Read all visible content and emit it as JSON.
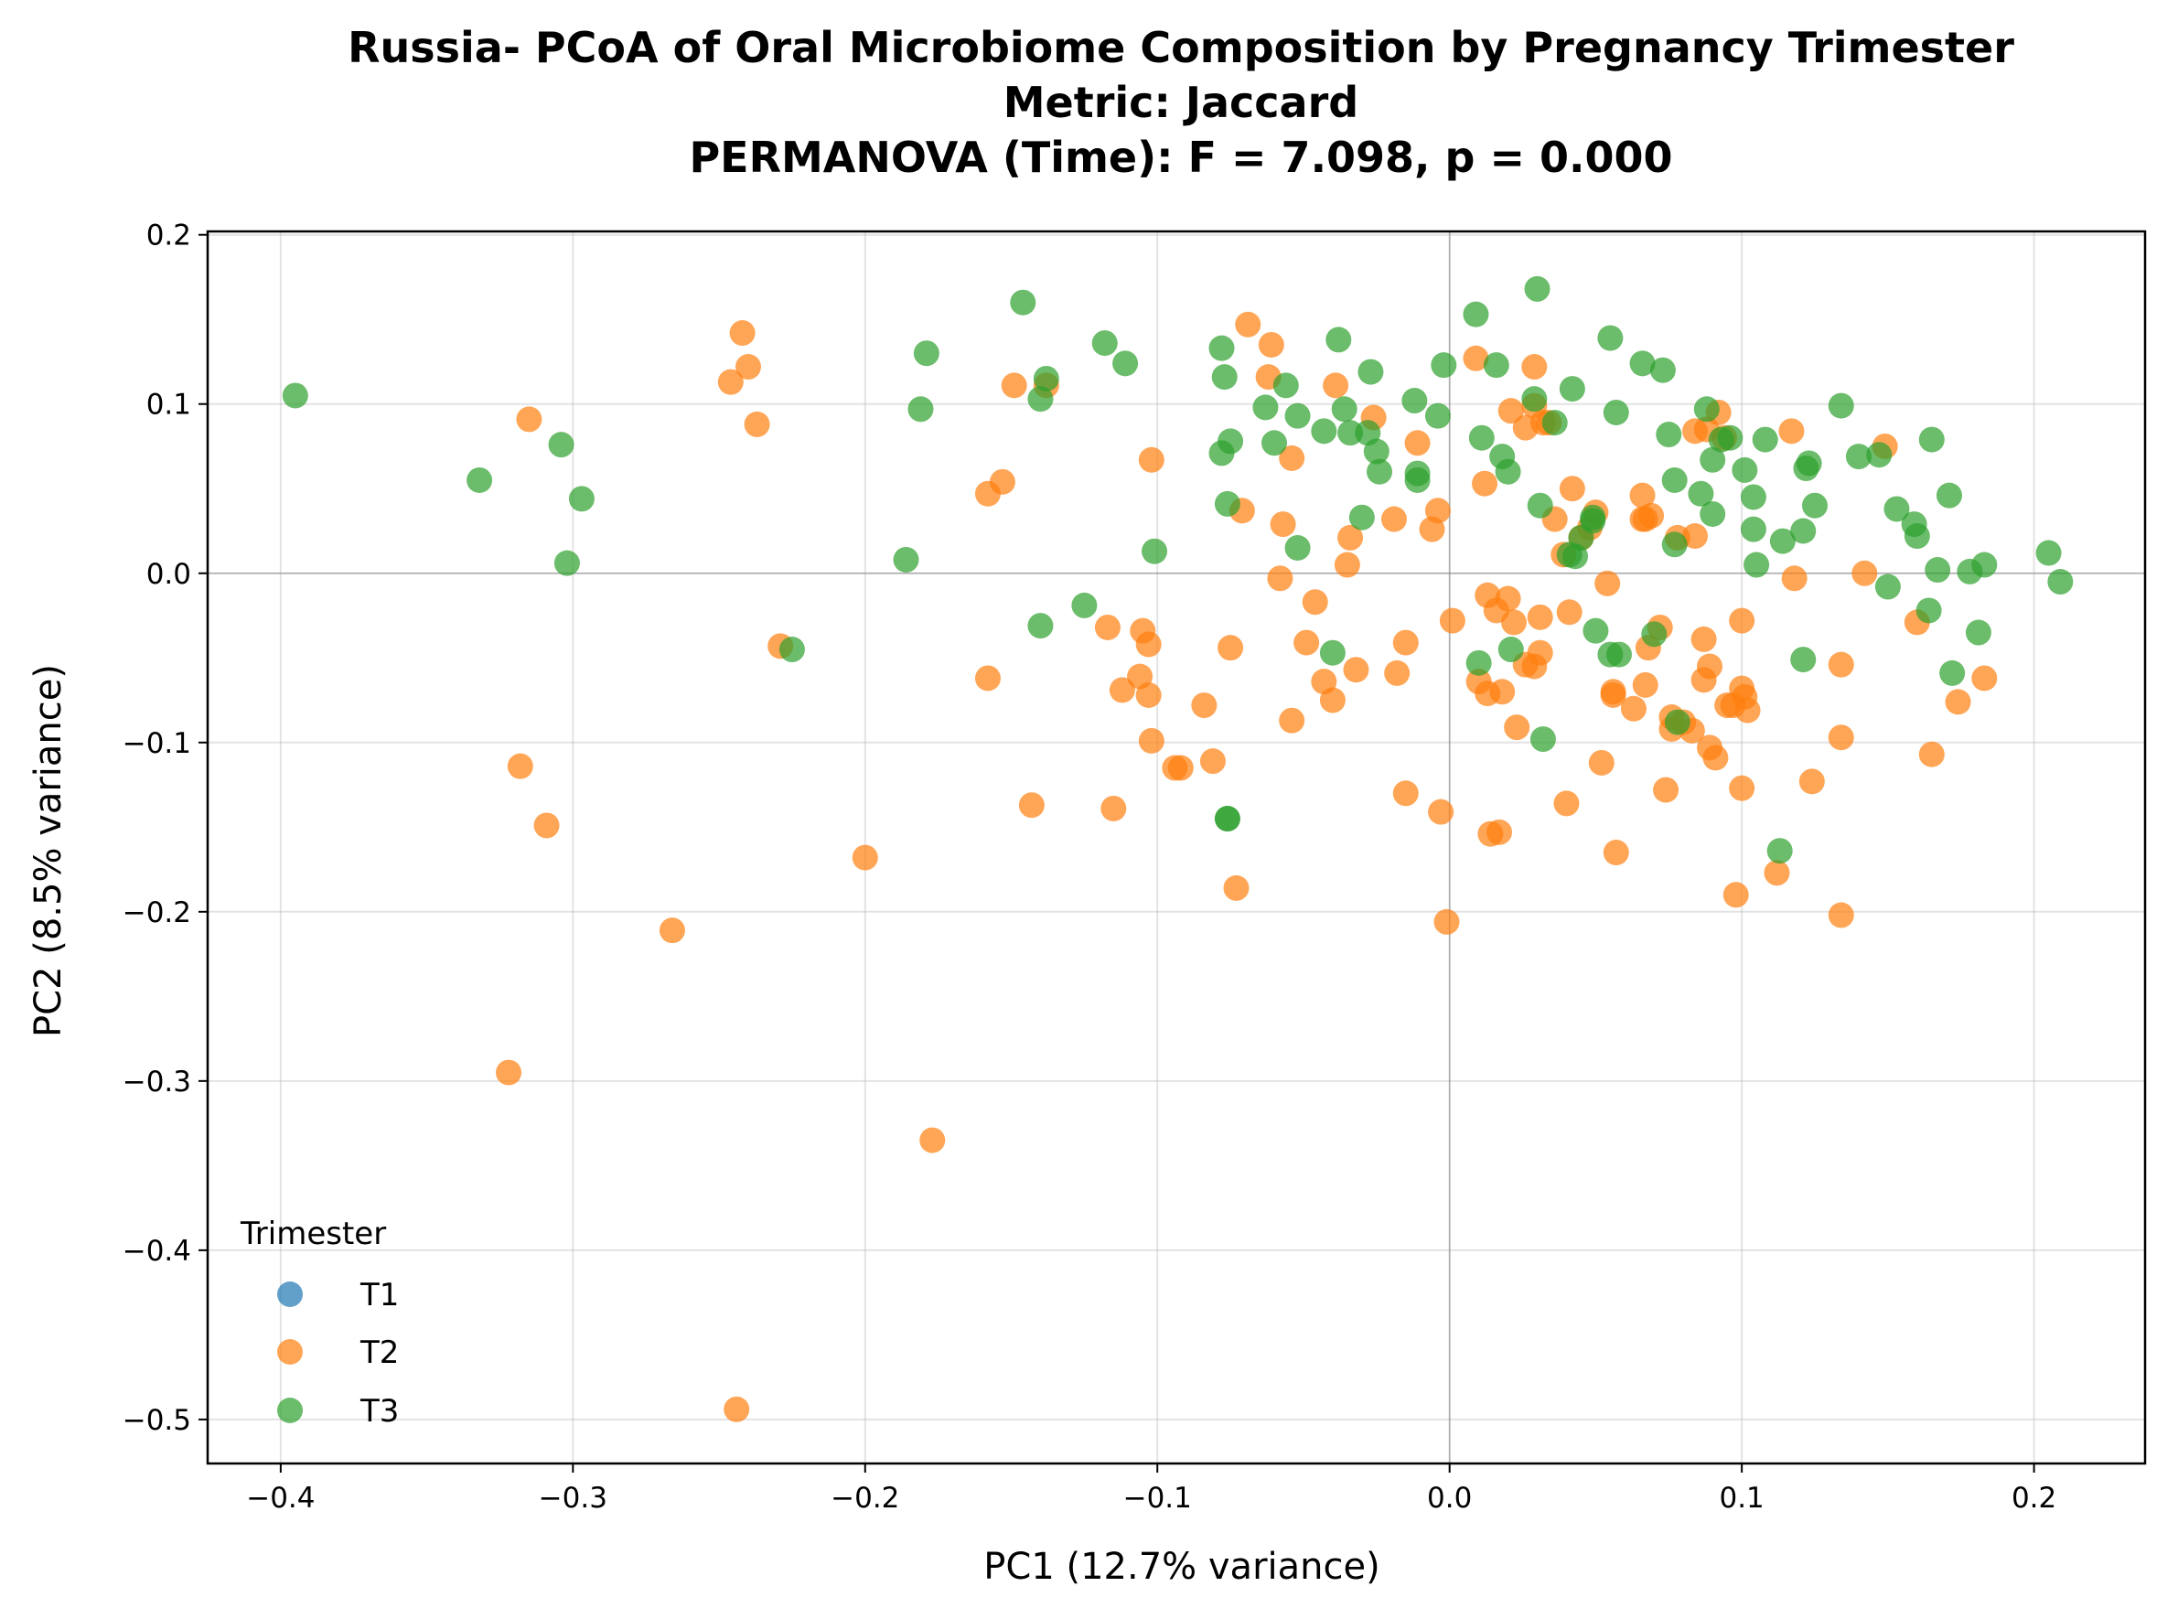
{
  "chart_data": {
    "type": "scatter",
    "title": [
      "Russia- PCoA of Oral Microbiome Composition by Pregnancy Trimester",
      "Metric: Jaccard",
      "PERMANOVA (Time): F = 7.098, p = 0.000"
    ],
    "xlabel": "PC1 (12.7% variance)",
    "ylabel": "PC2 (8.5% variance)",
    "xlim": [
      -0.425,
      0.238
    ],
    "ylim": [
      -0.526,
      0.202
    ],
    "xticks": [
      -0.4,
      -0.3,
      -0.2,
      -0.1,
      0.0,
      0.1,
      0.2
    ],
    "xtick_labels": [
      "−0.4",
      "−0.3",
      "−0.2",
      "−0.1",
      "0.0",
      "0.1",
      "0.2"
    ],
    "yticks": [
      0.2,
      0.1,
      0.0,
      -0.1,
      -0.2,
      -0.3,
      -0.4,
      -0.5
    ],
    "ytick_labels": [
      "0.2",
      "0.1",
      "0.0",
      "−0.1",
      "−0.2",
      "−0.3",
      "−0.4",
      "−0.5"
    ],
    "grid": true,
    "zero_lines": true,
    "legend": {
      "title": "Trimester",
      "placement": "lower-left"
    },
    "series": [
      {
        "name": "T1",
        "color": "#1f77b4",
        "x": [],
        "y": []
      },
      {
        "name": "T2",
        "color": "#ff7f0e",
        "x": [
          -0.242,
          -0.246,
          -0.24,
          -0.237,
          -0.149,
          -0.138,
          -0.315,
          -0.153,
          -0.158,
          -0.229,
          -0.158,
          -0.318,
          -0.309,
          -0.2,
          -0.266,
          -0.322,
          -0.177,
          -0.244,
          -0.143,
          -0.117,
          -0.112,
          -0.115,
          -0.102,
          -0.105,
          -0.103,
          -0.106,
          -0.103,
          -0.102,
          -0.084,
          -0.094,
          -0.092,
          -0.081,
          -0.075,
          -0.071,
          -0.069,
          -0.061,
          -0.062,
          -0.057,
          -0.054,
          -0.058,
          -0.073,
          -0.039,
          -0.026,
          -0.034,
          -0.035,
          -0.046,
          -0.049,
          -0.043,
          -0.04,
          -0.032,
          -0.054,
          -0.011,
          -0.019,
          -0.006,
          -0.004,
          -0.015,
          -0.018,
          -0.015,
          -0.003,
          -0.001,
          0.001,
          0.009,
          0.012,
          0.013,
          0.016,
          0.018,
          0.02,
          0.023,
          0.022,
          0.026,
          0.026,
          0.029,
          0.029,
          0.034,
          0.036,
          0.031,
          0.039,
          0.042,
          0.041,
          0.045,
          0.048,
          0.05,
          0.054,
          0.056,
          0.066,
          0.069,
          0.068,
          0.072,
          0.076,
          0.078,
          0.084,
          0.01,
          0.013,
          0.017,
          0.014,
          0.021,
          0.029,
          0.031,
          0.032,
          0.04,
          0.052,
          0.057,
          0.056,
          0.063,
          0.066,
          0.067,
          0.067,
          0.074,
          0.076,
          0.08,
          0.083,
          0.087,
          0.087,
          0.089,
          0.089,
          0.091,
          0.095,
          0.097,
          0.1,
          0.101,
          0.1,
          0.1,
          0.102,
          0.098,
          0.112,
          0.118,
          0.134,
          0.134,
          0.124,
          0.134,
          0.142,
          0.149,
          0.16,
          0.165,
          0.174,
          0.183,
          0.084,
          0.088,
          0.092,
          0.094,
          0.117
        ],
        "y": [
          0.142,
          0.113,
          0.122,
          0.088,
          0.111,
          0.111,
          0.091,
          0.054,
          0.047,
          -0.043,
          -0.062,
          -0.114,
          -0.149,
          -0.168,
          -0.211,
          -0.295,
          -0.335,
          -0.494,
          -0.137,
          -0.032,
          -0.069,
          -0.139,
          -0.099,
          -0.034,
          -0.042,
          -0.061,
          -0.072,
          0.067,
          -0.078,
          -0.115,
          -0.115,
          -0.111,
          -0.044,
          0.037,
          0.147,
          0.135,
          0.116,
          0.029,
          0.068,
          -0.003,
          -0.186,
          0.111,
          0.092,
          0.021,
          0.005,
          -0.017,
          -0.041,
          -0.064,
          -0.075,
          -0.057,
          -0.087,
          0.077,
          0.032,
          0.026,
          0.037,
          -0.041,
          -0.059,
          -0.13,
          -0.141,
          -0.206,
          -0.028,
          0.127,
          0.053,
          -0.013,
          -0.022,
          -0.07,
          -0.015,
          -0.091,
          -0.029,
          -0.054,
          0.086,
          0.122,
          0.099,
          0.089,
          0.032,
          -0.026,
          0.011,
          0.05,
          -0.023,
          0.021,
          0.027,
          0.036,
          -0.006,
          -0.07,
          0.046,
          0.034,
          -0.044,
          -0.032,
          -0.092,
          0.021,
          0.022,
          -0.064,
          -0.071,
          -0.153,
          -0.154,
          0.096,
          -0.055,
          -0.047,
          0.089,
          -0.136,
          -0.112,
          -0.165,
          -0.072,
          -0.08,
          0.032,
          -0.066,
          0.032,
          -0.128,
          -0.085,
          -0.088,
          -0.093,
          -0.039,
          -0.063,
          -0.055,
          -0.103,
          -0.109,
          -0.078,
          -0.078,
          -0.068,
          -0.073,
          -0.028,
          -0.127,
          -0.081,
          -0.19,
          -0.177,
          -0.003,
          -0.054,
          -0.097,
          -0.123,
          -0.202,
          0.0,
          0.075,
          -0.029,
          -0.107,
          -0.076,
          -0.062,
          0.084,
          0.085,
          0.095,
          0.08,
          0.084
        ]
      },
      {
        "name": "T3",
        "color": "#2ca02c",
        "x": [
          -0.395,
          -0.332,
          -0.304,
          -0.297,
          -0.302,
          -0.225,
          -0.186,
          -0.179,
          -0.181,
          -0.146,
          -0.14,
          -0.138,
          -0.125,
          -0.118,
          -0.111,
          -0.14,
          -0.101,
          -0.078,
          -0.077,
          -0.075,
          -0.078,
          -0.076,
          -0.076,
          -0.063,
          -0.06,
          -0.056,
          -0.052,
          -0.052,
          -0.043,
          -0.036,
          -0.038,
          -0.028,
          -0.027,
          -0.025,
          -0.024,
          -0.034,
          -0.03,
          -0.012,
          -0.011,
          -0.011,
          -0.004,
          -0.002,
          0.009,
          0.011,
          0.016,
          0.018,
          0.01,
          0.02,
          0.021,
          0.029,
          0.03,
          0.031,
          0.032,
          0.036,
          0.042,
          0.043,
          0.041,
          0.045,
          0.049,
          0.05,
          0.049,
          0.055,
          0.057,
          0.058,
          0.066,
          0.07,
          0.073,
          0.075,
          0.077,
          0.077,
          0.086,
          0.088,
          0.09,
          0.09,
          0.093,
          0.096,
          0.101,
          0.104,
          0.104,
          0.105,
          0.108,
          0.114,
          0.121,
          0.122,
          0.123,
          0.125,
          0.121,
          0.134,
          0.14,
          0.147,
          0.15,
          0.153,
          0.159,
          0.16,
          0.164,
          0.167,
          0.165,
          0.171,
          0.172,
          0.178,
          0.181,
          0.183,
          0.205,
          0.209,
          0.113,
          -0.04,
          -0.076,
          0.078,
          0.055
        ],
        "y": [
          0.105,
          0.055,
          0.076,
          0.044,
          0.006,
          -0.045,
          0.008,
          0.13,
          0.097,
          0.16,
          0.103,
          0.115,
          -0.019,
          0.136,
          0.124,
          -0.031,
          0.013,
          0.133,
          0.116,
          0.078,
          0.071,
          0.041,
          -0.145,
          0.098,
          0.077,
          0.111,
          0.093,
          0.015,
          0.084,
          0.097,
          0.138,
          0.083,
          0.119,
          0.072,
          0.06,
          0.083,
          0.033,
          0.102,
          0.059,
          0.055,
          0.093,
          0.123,
          0.153,
          0.08,
          0.123,
          0.069,
          -0.053,
          0.06,
          -0.045,
          0.103,
          0.168,
          0.04,
          -0.098,
          0.089,
          0.109,
          0.01,
          0.011,
          0.021,
          0.031,
          -0.034,
          0.033,
          0.139,
          0.095,
          -0.048,
          0.124,
          -0.036,
          0.12,
          0.082,
          0.055,
          0.017,
          0.047,
          0.097,
          0.035,
          0.067,
          0.079,
          0.08,
          0.061,
          0.045,
          0.026,
          0.005,
          0.079,
          0.019,
          0.025,
          0.062,
          0.065,
          0.04,
          -0.051,
          0.099,
          0.069,
          0.07,
          -0.008,
          0.038,
          0.029,
          0.022,
          -0.022,
          0.002,
          0.079,
          0.046,
          -0.059,
          0.001,
          -0.035,
          0.005,
          0.012,
          -0.005,
          -0.164,
          -0.047,
          -0.145,
          -0.088,
          -0.048
        ]
      }
    ]
  }
}
